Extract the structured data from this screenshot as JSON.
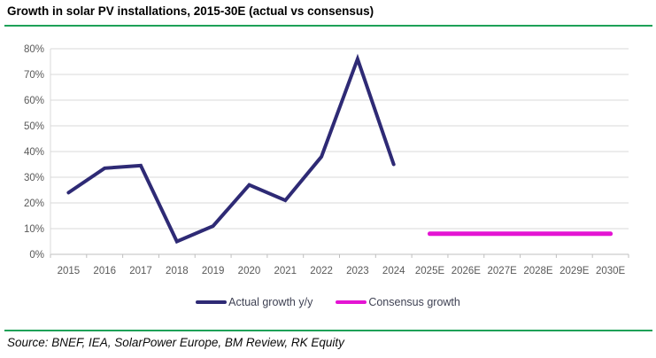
{
  "title": "Growth in solar PV installations, 2015-30E (actual vs consensus)",
  "source": "Source: BNEF, IEA, SolarPower Europe, BM Review, RK Equity",
  "colors": {
    "rule_green": "#1EA158",
    "actual_line": "#2E2A75",
    "consensus_line": "#E414D3",
    "gridline": "#D9D9D9",
    "axis_line": "#BFBFBF",
    "tick_text": "#595959",
    "legend_text": "#3F4254"
  },
  "chart_data": {
    "type": "line",
    "title": "Growth in solar PV installations, 2015-30E (actual vs consensus)",
    "categories": [
      "2015",
      "2016",
      "2017",
      "2018",
      "2019",
      "2020",
      "2021",
      "2022",
      "2023",
      "2024",
      "2025E",
      "2026E",
      "2027E",
      "2028E",
      "2029E",
      "2030E"
    ],
    "series": [
      {
        "name": "Actual growth y/y",
        "color": "#2E2A75",
        "values": [
          24,
          33.5,
          34.5,
          5,
          11,
          27,
          21,
          38,
          76,
          35,
          null,
          null,
          null,
          null,
          null,
          null
        ]
      },
      {
        "name": "Consensus growth",
        "color": "#E414D3",
        "values": [
          null,
          null,
          null,
          null,
          null,
          null,
          null,
          null,
          null,
          null,
          8,
          8,
          8,
          8,
          8,
          8
        ]
      }
    ],
    "xlabel": "",
    "ylabel": "",
    "ytick_format": "percent",
    "ytick_labels": [
      "0%",
      "10%",
      "20%",
      "30%",
      "40%",
      "50%",
      "60%",
      "70%",
      "80%"
    ],
    "ylim": [
      0,
      80
    ],
    "ytick_step": 10,
    "grid": "horizontal",
    "legend_position": "bottom"
  },
  "legend": {
    "items": [
      {
        "label": "Actual growth y/y",
        "color": "#2E2A75"
      },
      {
        "label": "Consensus growth",
        "color": "#E414D3"
      }
    ]
  }
}
